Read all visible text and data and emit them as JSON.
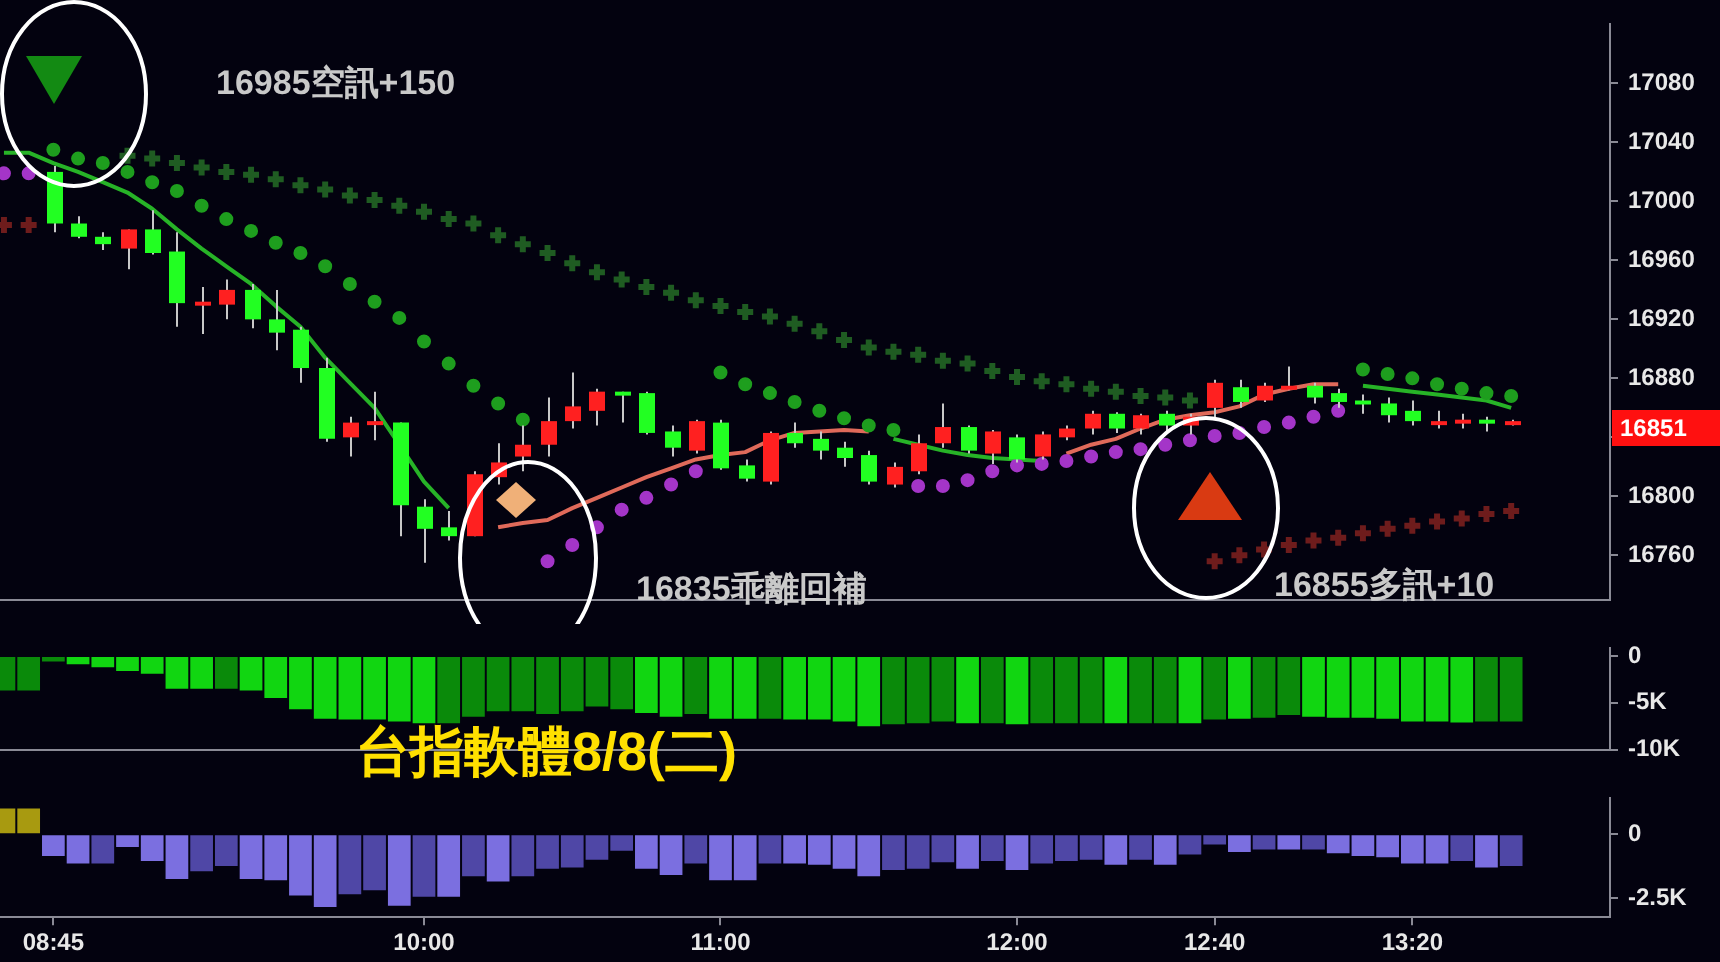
{
  "chart_data": [
    {
      "type": "candlestick",
      "title": "台指軟體8/8(二)",
      "annotations": [
        "16985空訊+150",
        "16835乖離回補",
        "16855多訊+10",
        "16851"
      ],
      "x": [
        8.5833,
        8.6667,
        8.75,
        8.8333,
        8.9167,
        9,
        9.0833,
        9.1667,
        9.25,
        9.3333,
        9.4167,
        9.5,
        9.5833,
        9.6667,
        9.75,
        9.8333,
        9.9167,
        10,
        10.0833,
        10.1667,
        10.25,
        10.3333,
        10.4167,
        10.5,
        10.5833,
        10.6667,
        10.75,
        10.8333,
        10.9167,
        11,
        11.0833,
        11.1667,
        11.25,
        11.3333,
        11.4167,
        11.5,
        11.5833,
        11.6667,
        11.75,
        11.8333,
        11.9167,
        12,
        12.0833,
        12.1667,
        12.25,
        12.3333,
        12.4167,
        12.5,
        12.5833,
        12.6667,
        12.75,
        12.8333,
        12.9167,
        13,
        13.0833,
        13.1667,
        13.25,
        13.3333,
        13.4167,
        13.5,
        13.5833,
        13.6667
      ],
      "ohlc": [
        null,
        null,
        [
          17020,
          17024,
          16979,
          16985
        ],
        [
          16985,
          16990,
          16975,
          16976
        ],
        [
          16976,
          16979,
          16967,
          16971
        ],
        [
          16968,
          16981,
          16954,
          16981
        ],
        [
          16981,
          16994,
          16964,
          16965
        ],
        [
          16966,
          16979,
          16915,
          16931
        ],
        [
          16930,
          16942,
          16910,
          16932
        ],
        [
          16930,
          16947,
          16920,
          16940
        ],
        [
          16940,
          16944,
          16914,
          16920
        ],
        [
          16920,
          16940,
          16899,
          16911
        ],
        [
          16913,
          16915,
          16877,
          16887
        ],
        [
          16887,
          16894,
          16837,
          16839
        ],
        [
          16840,
          16854,
          16827,
          16850
        ],
        [
          16850,
          16871,
          16838,
          16851
        ],
        [
          16850,
          16850,
          16773,
          16794
        ],
        [
          16793,
          16798,
          16755,
          16778
        ],
        [
          16779,
          16790,
          16770,
          16773
        ],
        [
          16773,
          16817,
          16773,
          16815
        ],
        [
          16813,
          16836,
          16808,
          16823
        ],
        [
          16827,
          16848,
          16817,
          16835
        ],
        [
          16835,
          16867,
          16827,
          16851
        ],
        [
          16851,
          16884,
          16846,
          16861
        ],
        [
          16858,
          16873,
          16848,
          16871
        ],
        [
          16871,
          16871,
          16850,
          16870
        ],
        [
          16870,
          16871,
          16842,
          16843
        ],
        [
          16844,
          16848,
          16827,
          16833
        ],
        [
          16831,
          16852,
          16829,
          16851
        ],
        [
          16850,
          16852,
          16818,
          16819
        ],
        [
          16821,
          16825,
          16810,
          16812
        ],
        [
          16810,
          16844,
          16808,
          16843
        ],
        [
          16843,
          16850,
          16833,
          16836
        ],
        [
          16839,
          16844,
          16825,
          16831
        ],
        [
          16833,
          16837,
          16820,
          16826
        ],
        [
          16828,
          16831,
          16808,
          16810
        ],
        [
          16808,
          16823,
          16806,
          16820
        ],
        [
          16817,
          16842,
          16815,
          16836
        ],
        [
          16836,
          16863,
          16833,
          16847
        ],
        [
          16847,
          16848,
          16829,
          16831
        ],
        [
          16829,
          16845,
          16822,
          16844
        ],
        [
          16840,
          16842,
          16823,
          16825
        ],
        [
          16827,
          16844,
          16825,
          16842
        ],
        [
          16840,
          16848,
          16838,
          16846
        ],
        [
          16846,
          16858,
          16842,
          16856
        ],
        [
          16856,
          16857,
          16843,
          16846
        ],
        [
          16846,
          16856,
          16842,
          16855
        ],
        [
          16856,
          16858,
          16844,
          16848
        ],
        [
          16848,
          16856,
          16842,
          16854
        ],
        [
          16860,
          16879,
          16852,
          16877
        ],
        [
          16874,
          16879,
          16860,
          16864
        ],
        [
          16865,
          16877,
          16864,
          16875
        ],
        [
          16873,
          16888,
          16872,
          16875
        ],
        [
          16875,
          16877,
          16863,
          16867
        ],
        [
          16870,
          16873,
          16860,
          16864
        ],
        [
          16865,
          16869,
          16856,
          16863
        ],
        [
          16863,
          16867,
          16850,
          16855
        ],
        [
          16858,
          16865,
          16848,
          16851
        ],
        [
          16850,
          16858,
          16846,
          16851
        ],
        [
          16851,
          16856,
          16846,
          16852
        ],
        [
          16852,
          16854,
          16844,
          16851
        ],
        [
          16850,
          16852,
          16848,
          16851
        ]
      ],
      "series": [
        {
          "type": "scatter",
          "marker": "circle",
          "color": "#1e9e1e",
          "values": [
            null,
            null,
            17035,
            17029,
            17026,
            17020,
            17013,
            17007,
            16997,
            16988,
            16980,
            16972,
            16965,
            16956,
            16944,
            16932,
            16921,
            16905,
            16890,
            16875,
            16863,
            16852,
            null,
            null,
            null,
            null,
            null,
            null,
            null,
            16884,
            16876,
            16870,
            16864,
            16858,
            16853,
            16848,
            16845,
            null,
            null,
            null,
            null,
            null,
            null,
            null,
            null,
            null,
            null,
            null,
            null,
            null,
            null,
            null,
            null,
            null,
            null,
            16886,
            16883,
            16880,
            16876,
            16873,
            16870,
            16868
          ]
        },
        {
          "type": "scatter",
          "marker": "cross",
          "color": "#1f5c22",
          "values": [
            null,
            null,
            null,
            null,
            null,
            17031,
            17029,
            17026,
            17023,
            17020,
            17018,
            17015,
            17011,
            17008,
            17004,
            17001,
            16997,
            16993,
            16988,
            16985,
            16977,
            16971,
            16965,
            16958,
            16952,
            16947,
            16942,
            16938,
            16933,
            16929,
            16925,
            16922,
            16917,
            16912,
            16906,
            16901,
            16898,
            16896,
            16892,
            16890,
            16885,
            16881,
            16878,
            16876,
            16873,
            16871,
            16868,
            16867,
            16865,
            null,
            null,
            null,
            null,
            null,
            null,
            null,
            null,
            null,
            null,
            null,
            null,
            null
          ]
        },
        {
          "type": "scatter",
          "marker": "cross",
          "color": "#6e1c1c",
          "values": [
            16984,
            16984,
            null,
            null,
            null,
            null,
            null,
            null,
            null,
            null,
            null,
            null,
            null,
            null,
            null,
            null,
            null,
            null,
            null,
            null,
            null,
            null,
            null,
            null,
            null,
            null,
            null,
            null,
            null,
            null,
            null,
            null,
            null,
            null,
            null,
            null,
            null,
            null,
            null,
            null,
            null,
            null,
            null,
            null,
            null,
            null,
            null,
            null,
            null,
            16756,
            16760,
            16764,
            16767,
            16770,
            16772,
            16775,
            16778,
            16780,
            16783,
            16785,
            16788,
            16790
          ]
        },
        {
          "type": "scatter",
          "marker": "circle",
          "color": "#a435c8",
          "values": [
            17019,
            17019,
            null,
            null,
            null,
            null,
            null,
            null,
            null,
            null,
            null,
            null,
            null,
            null,
            null,
            null,
            null,
            null,
            null,
            null,
            null,
            null,
            16756,
            16767,
            16779,
            16791,
            16799,
            16808,
            16817,
            null,
            null,
            null,
            null,
            null,
            null,
            null,
            null,
            16807,
            16807,
            16811,
            16817,
            16821,
            16822,
            16824,
            16827,
            16830,
            16832,
            16835,
            16838,
            16841,
            16843,
            16847,
            16850,
            16854,
            16858,
            null,
            null,
            null,
            null,
            null,
            null,
            null
          ]
        },
        {
          "type": "line",
          "marker": "none",
          "color": "#27b327",
          "values": [
            17033,
            17033,
            17026,
            17020,
            17013,
            17006,
            16995,
            16981,
            16968,
            16956,
            16944,
            16929,
            16915,
            16894,
            16877,
            16860,
            16835,
            16810,
            16792,
            null,
            null,
            null,
            null,
            null,
            null,
            null,
            null,
            null,
            null,
            null,
            null,
            null,
            null,
            null,
            null,
            null,
            16839,
            16835,
            16831,
            16828,
            16826,
            16825,
            16824,
            null,
            null,
            null,
            null,
            null,
            null,
            null,
            null,
            null,
            null,
            null,
            null,
            16875,
            16873,
            16871,
            16869,
            16867,
            16865,
            16860
          ]
        },
        {
          "type": "line",
          "marker": "none",
          "color": "#e06a5a",
          "values": [
            null,
            null,
            null,
            null,
            null,
            null,
            null,
            null,
            null,
            null,
            null,
            null,
            null,
            null,
            null,
            null,
            null,
            null,
            null,
            null,
            16779,
            16782,
            16784,
            16792,
            16799,
            16806,
            16813,
            16819,
            16825,
            16828,
            16830,
            16838,
            16843,
            16844,
            16845,
            16844,
            null,
            null,
            null,
            null,
            null,
            null,
            null,
            16829,
            16835,
            16839,
            16846,
            16852,
            16855,
            16857,
            16861,
            16869,
            16873,
            16876,
            16876,
            null,
            null,
            null,
            null,
            null,
            null,
            null
          ]
        }
      ],
      "xlim": [
        8.57,
        14.0
      ],
      "ylim": [
        16730,
        17120
      ],
      "yticks": [
        16760,
        16800,
        {
          "value": 16840,
          "label": null
        },
        16880,
        16920,
        16960,
        17000,
        17040,
        17080
      ],
      "tick_labels": "y"
    },
    {
      "type": "bar",
      "x": [
        8.5833,
        8.6667,
        8.75,
        8.8333,
        8.9167,
        9,
        9.0833,
        9.1667,
        9.25,
        9.3333,
        9.4167,
        9.5,
        9.5833,
        9.6667,
        9.75,
        9.8333,
        9.9167,
        10,
        10.0833,
        10.1667,
        10.25,
        10.3333,
        10.4167,
        10.5,
        10.5833,
        10.6667,
        10.75,
        10.8333,
        10.9167,
        11,
        11.0833,
        11.1667,
        11.25,
        11.3333,
        11.4167,
        11.5,
        11.5833,
        11.6667,
        11.75,
        11.8333,
        11.9167,
        12,
        12.0833,
        12.1667,
        12.25,
        12.3333,
        12.4167,
        12.5,
        12.5833,
        12.6667,
        12.75,
        12.8333,
        12.9167,
        13,
        13.0833,
        13.1667,
        13.25,
        13.3333,
        13.4167,
        13.5,
        13.5833,
        13.6667
      ],
      "values": [
        -3700,
        -3700,
        -600,
        -900,
        -1200,
        -1600,
        -1900,
        -3500,
        -3500,
        -3500,
        -3700,
        -4500,
        -5700,
        -6700,
        -6800,
        -6800,
        -7000,
        -7200,
        -7200,
        -6500,
        -5900,
        -5900,
        -6200,
        -5900,
        -5400,
        -5700,
        -6100,
        -6500,
        -6200,
        -6700,
        -6700,
        -6700,
        -6800,
        -6800,
        -7000,
        -7500,
        -7300,
        -7200,
        -7000,
        -7200,
        -7200,
        -7300,
        -7200,
        -7200,
        -7200,
        -7200,
        -7200,
        -7200,
        -7200,
        -6800,
        -6700,
        -6600,
        -6300,
        -6500,
        -6600,
        -6600,
        -6700,
        -7000,
        -7000,
        -7100,
        -7000,
        -7000
      ],
      "colors": [
        "#0a8a0a",
        "#0a8a0a",
        "#0a8a0a",
        "#11d611",
        "#11d611",
        "#11d611",
        "#11d611",
        "#11d611",
        "#11d611",
        "#0a8a0a",
        "#11d611",
        "#11d611",
        "#11d611",
        "#11d611",
        "#11d611",
        "#11d611",
        "#11d611",
        "#11d611",
        "#0a8a0a",
        "#0a8a0a",
        "#0a8a0a",
        "#0a8a0a",
        "#0a8a0a",
        "#0a8a0a",
        "#0a8a0a",
        "#0a8a0a",
        "#11d611",
        "#11d611",
        "#0a8a0a",
        "#11d611",
        "#11d611",
        "#0a8a0a",
        "#11d611",
        "#11d611",
        "#11d611",
        "#11d611",
        "#0a8a0a",
        "#0a8a0a",
        "#0a8a0a",
        "#11d611",
        "#0a8a0a",
        "#11d611",
        "#0a8a0a",
        "#0a8a0a",
        "#0a8a0a",
        "#11d611",
        "#0a8a0a",
        "#0a8a0a",
        "#11d611",
        "#0a8a0a",
        "#11d611",
        "#0a8a0a",
        "#0a8a0a",
        "#11d611",
        "#11d611",
        "#11d611",
        "#11d611",
        "#11d611",
        "#11d611",
        "#11d611",
        "#0a8a0a",
        "#0a8a0a"
      ],
      "xlim": [
        8.57,
        14.0
      ],
      "ylim": [
        -10000,
        800
      ],
      "yticks": [
        {
          "value": -10000,
          "label": "-10K"
        },
        {
          "value": -5000,
          "label": "-5K"
        },
        0
      ],
      "tick_labels": "y"
    },
    {
      "type": "bar",
      "x": [
        8.5833,
        8.6667,
        8.75,
        8.8333,
        8.9167,
        9,
        9.0833,
        9.1667,
        9.25,
        9.3333,
        9.4167,
        9.5,
        9.5833,
        9.6667,
        9.75,
        9.8333,
        9.9167,
        10,
        10.0833,
        10.1667,
        10.25,
        10.3333,
        10.4167,
        10.5,
        10.5833,
        10.6667,
        10.75,
        10.8333,
        10.9167,
        11,
        11.0833,
        11.1667,
        11.25,
        11.3333,
        11.4167,
        11.5,
        11.5833,
        11.6667,
        11.75,
        11.8333,
        11.9167,
        12,
        12.0833,
        12.1667,
        12.25,
        12.3333,
        12.4167,
        12.5,
        12.5833,
        12.6667,
        12.75,
        12.8333,
        12.9167,
        13,
        13.0833,
        13.1667,
        13.25,
        13.3333,
        13.4167,
        13.5,
        13.5833,
        13.6667
      ],
      "values": [
        1000,
        1000,
        -850,
        -1150,
        -1150,
        -500,
        -1050,
        -1750,
        -1450,
        -1250,
        -1750,
        -1800,
        -2400,
        -2850,
        -2350,
        -2200,
        -2800,
        -2450,
        -2450,
        -1650,
        -1850,
        -1650,
        -1350,
        -1300,
        -1000,
        -650,
        -1350,
        -1600,
        -1150,
        -1800,
        -1800,
        -1150,
        -1150,
        -1200,
        -1350,
        -1650,
        -1400,
        -1350,
        -1100,
        -1350,
        -1050,
        -1400,
        -1150,
        -1050,
        -1000,
        -1200,
        -1000,
        -1200,
        -800,
        -400,
        -700,
        -600,
        -600,
        -600,
        -750,
        -850,
        -900,
        -1150,
        -1150,
        -1050,
        -1300,
        -1250
      ],
      "colors": [
        "#a89a10",
        "#a89a10",
        "#7b6fe0",
        "#7b6fe0",
        "#4f47a6",
        "#7b6fe0",
        "#7b6fe0",
        "#7b6fe0",
        "#4f47a6",
        "#4f47a6",
        "#7b6fe0",
        "#7b6fe0",
        "#7b6fe0",
        "#7b6fe0",
        "#4f47a6",
        "#4f47a6",
        "#7b6fe0",
        "#4f47a6",
        "#7b6fe0",
        "#4f47a6",
        "#7b6fe0",
        "#4f47a6",
        "#4f47a6",
        "#4f47a6",
        "#4f47a6",
        "#4f47a6",
        "#7b6fe0",
        "#7b6fe0",
        "#4f47a6",
        "#7b6fe0",
        "#7b6fe0",
        "#4f47a6",
        "#7b6fe0",
        "#7b6fe0",
        "#7b6fe0",
        "#7b6fe0",
        "#4f47a6",
        "#4f47a6",
        "#4f47a6",
        "#7b6fe0",
        "#4f47a6",
        "#7b6fe0",
        "#4f47a6",
        "#4f47a6",
        "#4f47a6",
        "#7b6fe0",
        "#4f47a6",
        "#7b6fe0",
        "#4f47a6",
        "#4f47a6",
        "#7b6fe0",
        "#4f47a6",
        "#7b6fe0",
        "#4f47a6",
        "#7b6fe0",
        "#7b6fe0",
        "#7b6fe0",
        "#7b6fe0",
        "#7b6fe0",
        "#4f47a6",
        "#7b6fe0",
        "#4f47a6"
      ],
      "xlim": [
        8.57,
        14.0
      ],
      "ylim": [
        -3250,
        1400
      ],
      "yticks": [
        {
          "value": -2500,
          "label": "-2.5K"
        },
        0
      ],
      "xticks": [
        {
          "value": 8.75,
          "label": "08:45"
        },
        {
          "value": 10,
          "label": "10:00"
        },
        {
          "value": 11,
          "label": "11:00"
        },
        {
          "value": 12,
          "label": "12:00"
        },
        {
          "value": 12.6667,
          "label": "12:40"
        },
        {
          "value": 13.3333,
          "label": "13:20"
        }
      ]
    }
  ]
}
